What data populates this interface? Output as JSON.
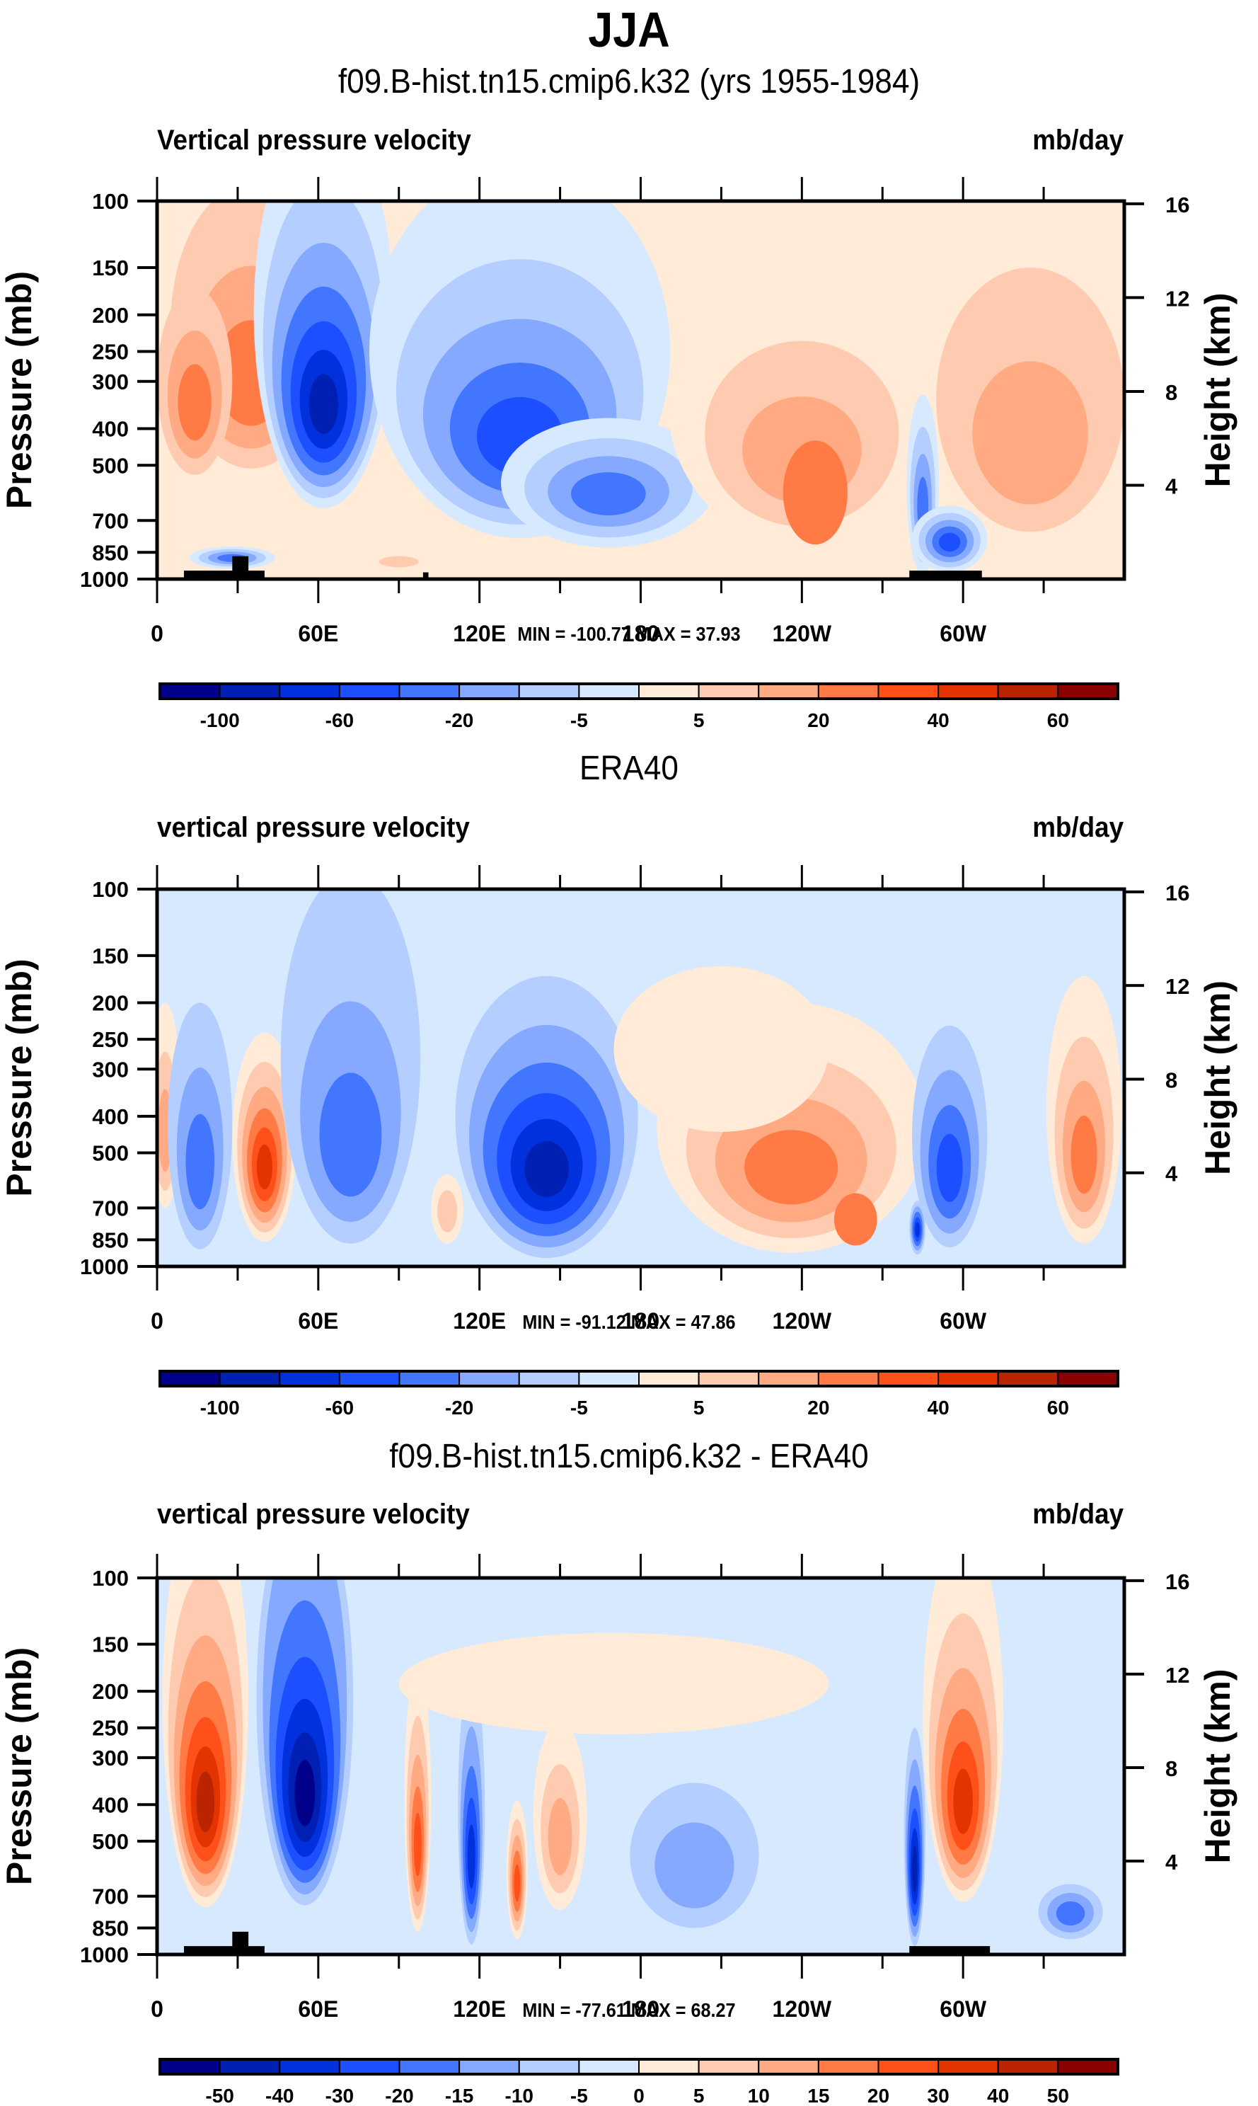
{
  "figure": {
    "main_title": "JJA"
  },
  "palette": [
    "#00008B",
    "#0020B4",
    "#0031DD",
    "#1C4FFF",
    "#4276FF",
    "#84A9FF",
    "#B4CEFF",
    "#D6E9FF",
    "#FFEBD8",
    "#FFCBB0",
    "#FFAA83",
    "#FF7A44",
    "#FF5019",
    "#E33400",
    "#BA2400",
    "#8B0000"
  ],
  "chart_data": [
    {
      "type": "heatmap",
      "title": "f09.B-hist.tn15.cmip6.k32 (yrs 1955-1984)",
      "left_string": "Vertical pressure velocity",
      "right_string": "mb/day",
      "xlabel": "",
      "ylabel": "Pressure (mb)",
      "ylabel_right": "Height (km)",
      "x_range": [
        0,
        360
      ],
      "x_ticks": [
        {
          "v": 0,
          "label": "0"
        },
        {
          "v": 60,
          "label": "60E"
        },
        {
          "v": 120,
          "label": "120E"
        },
        {
          "v": 180,
          "label": "180"
        },
        {
          "v": 240,
          "label": "120W"
        },
        {
          "v": 300,
          "label": "60W"
        }
      ],
      "y_range": [
        1000,
        100
      ],
      "y_ticks": [
        "100",
        "150",
        "200",
        "250",
        "300",
        "400",
        "500",
        "700",
        "850",
        "1000"
      ],
      "y_ticks_right": [
        "16",
        "12",
        "8",
        "4"
      ],
      "minmax_text": "MIN = -100.77  MAX =  37.93",
      "min": -100.77,
      "max": 37.93,
      "colorbar_levels": [
        -100,
        -80,
        -60,
        -40,
        -20,
        -10,
        -5,
        0,
        5,
        10,
        20,
        30,
        40,
        50,
        60
      ],
      "colorbar_labels": [
        "-100",
        "",
        "-60",
        "",
        "-20",
        "",
        "-5",
        "",
        "5",
        "",
        "20",
        "",
        "40",
        "",
        "60"
      ],
      "topography": [
        {
          "lon0": 10,
          "lon1": 40,
          "p": 950
        },
        {
          "lon0": 28,
          "lon1": 34,
          "p": 870
        },
        {
          "lon0": 99,
          "lon1": 101,
          "p": 960
        },
        {
          "lon0": 280,
          "lon1": 307,
          "p": 950
        }
      ],
      "background_level": 8,
      "features": [
        {
          "lon": 35,
          "p": 300,
          "wl": 30,
          "hl": 420,
          "levels": [
            9,
            10,
            11
          ]
        },
        {
          "lon": 14,
          "p": 350,
          "wl": 14,
          "hl": 360,
          "levels": [
            9,
            10,
            11
          ]
        },
        {
          "lon": 28,
          "p": 880,
          "wl": 16,
          "hl": 120,
          "levels": [
            7,
            6,
            5,
            4
          ]
        },
        {
          "lon": 62,
          "p": 350,
          "wl": 26,
          "hl": 600,
          "levels": [
            7,
            6,
            5,
            4,
            3,
            2,
            1
          ]
        },
        {
          "lon": 135,
          "p": 430,
          "wl": 56,
          "hl": 700,
          "levels": [
            7,
            6,
            5,
            4,
            3
          ]
        },
        {
          "lon": 168,
          "p": 600,
          "wl": 40,
          "hl": 450,
          "levels": [
            7,
            6,
            5,
            4
          ]
        },
        {
          "lon": 240,
          "p": 480,
          "wl": 50,
          "hl": 680,
          "levels": [
            8,
            9,
            10
          ]
        },
        {
          "lon": 245,
          "p": 620,
          "wl": 12,
          "hl": 380,
          "levels": [
            11
          ]
        },
        {
          "lon": 285,
          "p": 650,
          "wl": 6,
          "hl": 650,
          "levels": [
            7,
            6,
            5,
            4
          ]
        },
        {
          "lon": 295,
          "p": 800,
          "wl": 14,
          "hl": 320,
          "levels": [
            7,
            6,
            5,
            4,
            3
          ]
        },
        {
          "lon": 325,
          "p": 450,
          "wl": 35,
          "hl": 600,
          "levels": [
            9,
            10
          ]
        },
        {
          "lon": 90,
          "p": 900,
          "wl": 12,
          "hl": 100,
          "levels": [
            8,
            9
          ]
        }
      ]
    },
    {
      "type": "heatmap",
      "title": "ERA40",
      "left_string": "vertical pressure velocity",
      "right_string": "mb/day",
      "xlabel": "",
      "ylabel": "Pressure (mb)",
      "ylabel_right": "Height (km)",
      "x_range": [
        0,
        360
      ],
      "x_ticks": [
        {
          "v": 0,
          "label": "0"
        },
        {
          "v": 60,
          "label": "60E"
        },
        {
          "v": 120,
          "label": "120E"
        },
        {
          "v": 180,
          "label": "180"
        },
        {
          "v": 240,
          "label": "120W"
        },
        {
          "v": 300,
          "label": "60W"
        }
      ],
      "y_range": [
        1000,
        100
      ],
      "y_ticks": [
        "100",
        "150",
        "200",
        "250",
        "300",
        "400",
        "500",
        "700",
        "850",
        "1000"
      ],
      "y_ticks_right": [
        "16",
        "12",
        "8",
        "4"
      ],
      "minmax_text": "MIN = -91.12  MAX =  47.86",
      "min": -91.12,
      "max": 47.86,
      "colorbar_levels": [
        -100,
        -80,
        -60,
        -40,
        -20,
        -10,
        -5,
        0,
        5,
        10,
        20,
        30,
        40,
        50,
        60
      ],
      "colorbar_labels": [
        "-100",
        "",
        "-60",
        "",
        "-20",
        "",
        "-5",
        "",
        "5",
        "",
        "20",
        "",
        "40",
        "",
        "60"
      ],
      "topography": [],
      "background_level": 7,
      "features": [
        {
          "lon": 3,
          "p": 450,
          "wl": 6,
          "hl": 500,
          "levels": [
            8,
            9,
            10
          ]
        },
        {
          "lon": 16,
          "p": 550,
          "wl": 12,
          "hl": 700,
          "levels": [
            6,
            5,
            4
          ]
        },
        {
          "lon": 40,
          "p": 550,
          "wl": 12,
          "hl": 620,
          "levels": [
            8,
            9,
            10,
            11,
            12,
            13
          ]
        },
        {
          "lon": 72,
          "p": 480,
          "wl": 26,
          "hl": 780,
          "levels": [
            6,
            5,
            4
          ]
        },
        {
          "lon": 108,
          "p": 720,
          "wl": 6,
          "hl": 300,
          "levels": [
            8,
            9
          ]
        },
        {
          "lon": 145,
          "p": 560,
          "wl": 34,
          "hl": 780,
          "levels": [
            6,
            5,
            4,
            3,
            2,
            1
          ]
        },
        {
          "lon": 236,
          "p": 560,
          "wl": 50,
          "hl": 720,
          "levels": [
            8,
            9,
            10,
            11
          ]
        },
        {
          "lon": 260,
          "p": 760,
          "wl": 8,
          "hl": 240,
          "levels": [
            11
          ]
        },
        {
          "lon": 283,
          "p": 800,
          "wl": 3,
          "hl": 260,
          "levels": [
            6,
            5,
            4,
            3,
            2
          ]
        },
        {
          "lon": 295,
          "p": 560,
          "wl": 14,
          "hl": 660,
          "levels": [
            6,
            5,
            4,
            3
          ]
        },
        {
          "lon": 345,
          "p": 520,
          "wl": 14,
          "hl": 700,
          "levels": [
            8,
            9,
            10,
            11
          ]
        },
        {
          "lon": 210,
          "p": 300,
          "wl": 40,
          "hl": 280,
          "levels": [
            8
          ]
        }
      ]
    },
    {
      "type": "heatmap",
      "title": "f09.B-hist.tn15.cmip6.k32 - ERA40",
      "left_string": "vertical pressure velocity",
      "right_string": "mb/day",
      "xlabel": "",
      "ylabel": "Pressure (mb)",
      "ylabel_right": "Height (km)",
      "x_range": [
        0,
        360
      ],
      "x_ticks": [
        {
          "v": 0,
          "label": "0"
        },
        {
          "v": 60,
          "label": "60E"
        },
        {
          "v": 120,
          "label": "120E"
        },
        {
          "v": 180,
          "label": "180"
        },
        {
          "v": 240,
          "label": "120W"
        },
        {
          "v": 300,
          "label": "60W"
        }
      ],
      "y_range": [
        1000,
        100
      ],
      "y_ticks": [
        "100",
        "150",
        "200",
        "250",
        "300",
        "400",
        "500",
        "700",
        "850",
        "1000"
      ],
      "y_ticks_right": [
        "16",
        "12",
        "8",
        "4"
      ],
      "minmax_text": "MIN = -77.61  MAX =  68.27",
      "min": -77.61,
      "max": 68.27,
      "colorbar_levels": [
        -50,
        -40,
        -30,
        -20,
        -15,
        -10,
        -5,
        0,
        5,
        10,
        15,
        20,
        30,
        40,
        50
      ],
      "colorbar_labels": [
        "-50",
        "-40",
        "-30",
        "-20",
        "-15",
        "-10",
        "-5",
        "0",
        "5",
        "10",
        "15",
        "20",
        "30",
        "40",
        "50"
      ],
      "topography": [
        {
          "lon0": 10,
          "lon1": 40,
          "p": 950
        },
        {
          "lon0": 28,
          "lon1": 34,
          "p": 870
        },
        {
          "lon0": 280,
          "lon1": 310,
          "p": 950
        }
      ],
      "background_level": 7,
      "features": [
        {
          "lon": 18,
          "p": 400,
          "wl": 16,
          "hl": 700,
          "levels": [
            8,
            9,
            10,
            11,
            12,
            13,
            14
          ]
        },
        {
          "lon": 55,
          "p": 380,
          "wl": 18,
          "hl": 720,
          "levels": [
            6,
            5,
            4,
            3,
            2,
            1,
            0
          ]
        },
        {
          "lon": 97,
          "p": 520,
          "wl": 5,
          "hl": 700,
          "levels": [
            8,
            9,
            10,
            11,
            12
          ]
        },
        {
          "lon": 117,
          "p": 560,
          "wl": 5,
          "hl": 760,
          "levels": [
            6,
            5,
            4,
            3,
            2
          ]
        },
        {
          "lon": 134,
          "p": 650,
          "wl": 4,
          "hl": 520,
          "levels": [
            8,
            9,
            10,
            11,
            12
          ]
        },
        {
          "lon": 150,
          "p": 500,
          "wl": 10,
          "hl": 520,
          "levels": [
            8,
            9,
            10
          ]
        },
        {
          "lon": 200,
          "p": 600,
          "wl": 24,
          "hl": 500,
          "levels": [
            6,
            5
          ]
        },
        {
          "lon": 282,
          "p": 600,
          "wl": 4,
          "hl": 700,
          "levels": [
            6,
            5,
            4,
            3,
            2,
            1
          ]
        },
        {
          "lon": 300,
          "p": 400,
          "wl": 15,
          "hl": 650,
          "levels": [
            8,
            9,
            10,
            11,
            12,
            13
          ]
        },
        {
          "lon": 340,
          "p": 780,
          "wl": 12,
          "hl": 260,
          "levels": [
            6,
            5,
            4
          ]
        },
        {
          "lon": 170,
          "p": 200,
          "wl": 80,
          "hl": 120,
          "levels": [
            8
          ]
        }
      ]
    }
  ]
}
